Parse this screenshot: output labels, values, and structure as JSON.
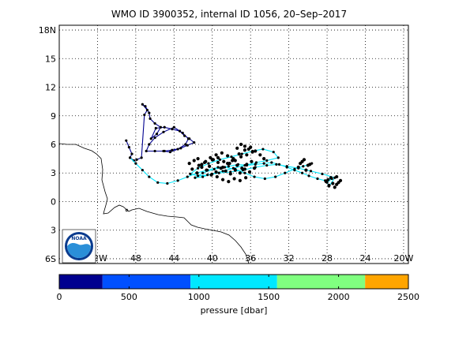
{
  "title": "WMO ID 3900352, internal ID 1056, 20–Sep–2017",
  "map": {
    "lat_ticks": [
      {
        "value": 18,
        "label": "18N"
      },
      {
        "value": 15,
        "label": "15"
      },
      {
        "value": 12,
        "label": "12"
      },
      {
        "value": 9,
        "label": "9"
      },
      {
        "value": 6,
        "label": "6"
      },
      {
        "value": 3,
        "label": "3"
      },
      {
        "value": 0,
        "label": "0"
      },
      {
        "value": -3,
        "label": "3"
      },
      {
        "value": -6,
        "label": "6S"
      }
    ],
    "lon_ticks": [
      {
        "value": -52,
        "label": "52W"
      },
      {
        "value": -48,
        "label": "48"
      },
      {
        "value": -44,
        "label": "44"
      },
      {
        "value": -40,
        "label": "40"
      },
      {
        "value": -36,
        "label": "36"
      },
      {
        "value": -32,
        "label": "32"
      },
      {
        "value": -28,
        "label": "28"
      },
      {
        "value": -24,
        "label": "24"
      },
      {
        "value": -20,
        "label": "20W"
      }
    ],
    "logo_text": "NOAA"
  },
  "colorbar": {
    "label": "pressure [dbar]",
    "ticks": [
      {
        "value": 0,
        "label": "0"
      },
      {
        "value": 500,
        "label": "500"
      },
      {
        "value": 1000,
        "label": "1000"
      },
      {
        "value": 1500,
        "label": "1500"
      },
      {
        "value": 2000,
        "label": "2000"
      },
      {
        "value": 2500,
        "label": "2500"
      }
    ]
  },
  "chart_data": {
    "type": "scatter",
    "title": "WMO ID 3900352, internal ID 1056, 20–Sep–2017",
    "xlim": [
      -56,
      -19.5
    ],
    "ylim": [
      -6.5,
      18.5
    ],
    "grid": true,
    "colorbar_label": "pressure [dbar]",
    "colorbar_range": [
      0,
      2500
    ],
    "colorbar_bands": [
      {
        "from": 0,
        "to": 310,
        "color": "#00008f"
      },
      {
        "from": 310,
        "to": 940,
        "color": "#0050ff"
      },
      {
        "from": 940,
        "to": 1560,
        "color": "#00e8ff"
      },
      {
        "from": 1560,
        "to": 2190,
        "color": "#80ff80"
      },
      {
        "from": 2190,
        "to": 2500,
        "color": "#ffa500"
      }
    ],
    "series": [
      {
        "color": "#00008f",
        "lon": [
          -49.0,
          -48.7,
          -48.4,
          -48.6,
          -48.2,
          -47.9,
          -47.4,
          -47.1,
          -46.8,
          -47.3,
          -47.0,
          -46.6,
          -46.5,
          -46.0,
          -45.4,
          -45.8,
          -46.4,
          -45.9,
          -45.0,
          -44.2,
          -43.4,
          -42.9,
          -42.4,
          -41.9,
          -42.6,
          -43.3,
          -44.2,
          -45.0,
          -46.0,
          -46.9,
          -46.6,
          -46.0,
          -45.1,
          -44.0,
          -43.1,
          -42.5,
          -42.8,
          -43.6,
          -44.4,
          -45.1
        ],
        "lat": [
          6.4,
          5.7,
          5.0,
          4.6,
          4.3,
          4.4,
          4.6,
          9.1,
          9.6,
          10.2,
          10.0,
          9.3,
          8.7,
          8.2,
          7.8,
          7.1,
          6.6,
          7.7,
          7.8,
          7.6,
          7.4,
          6.9,
          6.6,
          6.2,
          5.9,
          5.6,
          5.4,
          5.3,
          5.3,
          5.3,
          6.0,
          6.7,
          7.3,
          7.8,
          7.2,
          6.6,
          6.0,
          5.5,
          5.2,
          5.3
        ]
      },
      {
        "color": "#00e8ff",
        "lon": [
          -48.6,
          -48.0,
          -47.3,
          -46.6,
          -45.7,
          -44.7,
          -43.6,
          -42.6,
          -41.6,
          -40.5,
          -39.4,
          -38.3,
          -37.3,
          -36.4,
          -35.5,
          -34.6,
          -33.8,
          -33.0,
          -32.2,
          -31.4,
          -30.6,
          -29.9,
          -29.0,
          -28.2,
          -27.5,
          -28.0,
          -27.8,
          -27.2,
          -28.5,
          -29.7,
          -31.0,
          -32.2,
          -33.3,
          -34.3,
          -35.5,
          -36.8,
          -38.1,
          -39.3,
          -40.5,
          -41.5,
          -42.3,
          -41.5,
          -40.4,
          -39.2,
          -38.0,
          -36.9,
          -35.8,
          -34.7,
          -33.6,
          -33.1,
          -34.3,
          -35.4,
          -36.6,
          -37.8,
          -38.9,
          -40.0,
          -41.0,
          -41.8,
          -41.0,
          -39.8,
          -38.7,
          -37.6,
          -36.6,
          -35.6,
          -34.5,
          -33.4,
          -32.4,
          -31.4,
          -30.5,
          -29.6
        ],
        "lat": [
          4.6,
          4.0,
          3.3,
          2.6,
          2.0,
          1.9,
          2.2,
          2.6,
          3.0,
          3.3,
          3.6,
          3.7,
          3.9,
          3.8,
          3.9,
          4.0,
          4.1,
          3.9,
          3.6,
          3.3,
          3.0,
          2.7,
          2.4,
          2.2,
          2.4,
          2.0,
          1.6,
          2.5,
          2.9,
          3.2,
          3.5,
          3.7,
          3.9,
          3.8,
          3.6,
          3.3,
          3.1,
          3.0,
          2.8,
          2.7,
          2.9,
          3.5,
          4.0,
          4.4,
          4.7,
          5.0,
          5.3,
          5.5,
          5.2,
          4.6,
          4.3,
          4.1,
          3.8,
          3.5,
          3.2,
          2.9,
          2.6,
          2.5,
          3.0,
          3.4,
          3.6,
          3.4,
          3.0,
          2.6,
          2.4,
          2.6,
          3.0,
          3.4,
          3.7,
          4.0
        ]
      },
      {
        "color": "#000000",
        "lon": [
          -42.4,
          -41.9,
          -41.5,
          -41.1,
          -40.7,
          -40.3,
          -39.9,
          -39.4,
          -38.9,
          -38.4,
          -37.9,
          -37.4,
          -36.9,
          -36.4,
          -35.9,
          -35.6,
          -36.1,
          -36.6,
          -37.1,
          -37.6,
          -38.1,
          -38.6,
          -39.1,
          -39.6,
          -40.1,
          -40.6,
          -41.1,
          -41.6,
          -42.1,
          -41.4,
          -40.8,
          -40.2,
          -39.6,
          -39.0,
          -38.4,
          -37.8,
          -37.2,
          -36.6,
          -36.0,
          -35.5,
          -35.0,
          -34.6,
          -37.4,
          -37.0,
          -36.6,
          -36.2,
          -35.8,
          -36.4,
          -37.0,
          -37.6,
          -38.2,
          -38.8,
          -39.4,
          -40.0,
          -39.5,
          -38.9,
          -38.3,
          -37.7,
          -37.1,
          -36.5,
          -30.8,
          -30.4,
          -30.0,
          -30.6,
          -31.0,
          -30.2,
          -29.8,
          -27.9,
          -27.4,
          -27.0,
          -26.6,
          -27.8,
          -27.2,
          -26.8,
          -28.1,
          -27.6,
          -27.0
        ],
        "lat": [
          4.0,
          4.3,
          4.5,
          3.9,
          4.2,
          3.7,
          4.4,
          4.1,
          3.6,
          4.0,
          4.3,
          3.8,
          3.5,
          3.9,
          4.2,
          3.5,
          3.1,
          3.4,
          3.0,
          3.3,
          2.9,
          3.2,
          3.5,
          3.1,
          2.8,
          3.3,
          3.6,
          3.0,
          3.4,
          3.8,
          4.1,
          4.6,
          4.9,
          5.1,
          4.8,
          4.5,
          5.0,
          5.4,
          5.7,
          5.3,
          4.9,
          4.5,
          5.6,
          6.0,
          5.8,
          5.5,
          5.2,
          4.9,
          4.7,
          4.3,
          4.0,
          4.2,
          4.6,
          4.4,
          2.6,
          2.3,
          2.1,
          2.4,
          2.2,
          2.5,
          4.0,
          4.4,
          3.8,
          4.2,
          3.6,
          3.3,
          3.9,
          2.3,
          1.9,
          2.6,
          2.2,
          1.7,
          1.5,
          2.0,
          2.1,
          2.5,
          1.8
        ]
      }
    ]
  }
}
